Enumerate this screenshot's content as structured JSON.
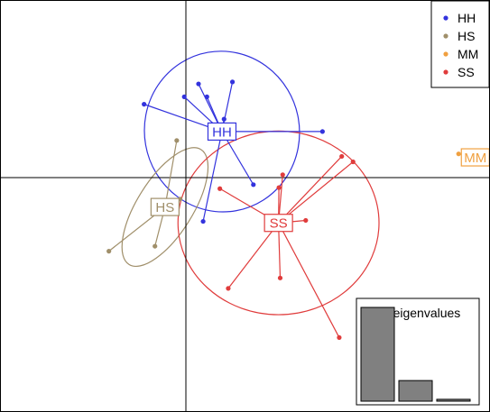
{
  "chart_data": {
    "type": "scatter",
    "title": "",
    "xlabel": "",
    "ylabel": "",
    "xlim": [
      -6.1,
      5.6
    ],
    "ylim": [
      -4.6,
      3.7
    ],
    "grid": false,
    "legend": {
      "placement": "top-right",
      "entries": [
        {
          "name": "HH",
          "color": "#3333dd"
        },
        {
          "name": "HS",
          "color": "#a08f6a"
        },
        {
          "name": "MM",
          "color": "#f0a040"
        },
        {
          "name": "SS",
          "color": "#e03c3c"
        }
      ]
    },
    "series": [
      {
        "name": "HH",
        "color": "#3333dd",
        "centroid": [
          -0.8,
          1.05
        ],
        "ellipse": {
          "rx": 1.85,
          "ry": 1.62,
          "angle": -10
        },
        "points": [
          [
            -2.66,
            1.6
          ],
          [
            -1.7,
            1.75
          ],
          [
            -1.36,
            2.01
          ],
          [
            -1.16,
            1.75
          ],
          [
            -0.55,
            2.05
          ],
          [
            -0.75,
            1.3
          ],
          [
            1.6,
            1.05
          ],
          [
            -0.05,
            -0.02
          ],
          [
            -1.25,
            -0.76
          ]
        ]
      },
      {
        "name": "HS",
        "color": "#a08f6a",
        "centroid": [
          -2.16,
          -0.47
        ],
        "ellipse": {
          "rx": 1.62,
          "ry": 0.56,
          "angle": -58
        },
        "points": [
          [
            -1.88,
            0.87
          ],
          [
            -3.5,
            -1.36
          ],
          [
            -2.4,
            -1.26
          ],
          [
            -1.8,
            -0.31
          ]
        ]
      },
      {
        "name": "MM",
        "color": "#f0a040",
        "centroid": [
          5.25,
          0.53
        ],
        "ellipse": null,
        "points": [
          [
            4.85,
            0.6
          ],
          [
            5.65,
            0.46
          ]
        ]
      },
      {
        "name": "SS",
        "color": "#e03c3c",
        "centroid": [
          0.55,
          -0.79
        ],
        "ellipse": {
          "rx": 2.4,
          "ry": 1.85,
          "angle": 0
        },
        "points": [
          [
            2.06,
            0.55
          ],
          [
            2.33,
            0.44
          ],
          [
            0.65,
            0.18
          ],
          [
            -0.85,
            -0.1
          ],
          [
            0.56,
            -0.08
          ],
          [
            1.2,
            -0.74
          ],
          [
            0.59,
            -1.9
          ],
          [
            -0.65,
            -2.11
          ],
          [
            2.0,
            -3.1
          ]
        ]
      }
    ],
    "inset": {
      "type": "bar",
      "title": "DA eigenvalues",
      "values": [
        100,
        22,
        2
      ]
    }
  }
}
